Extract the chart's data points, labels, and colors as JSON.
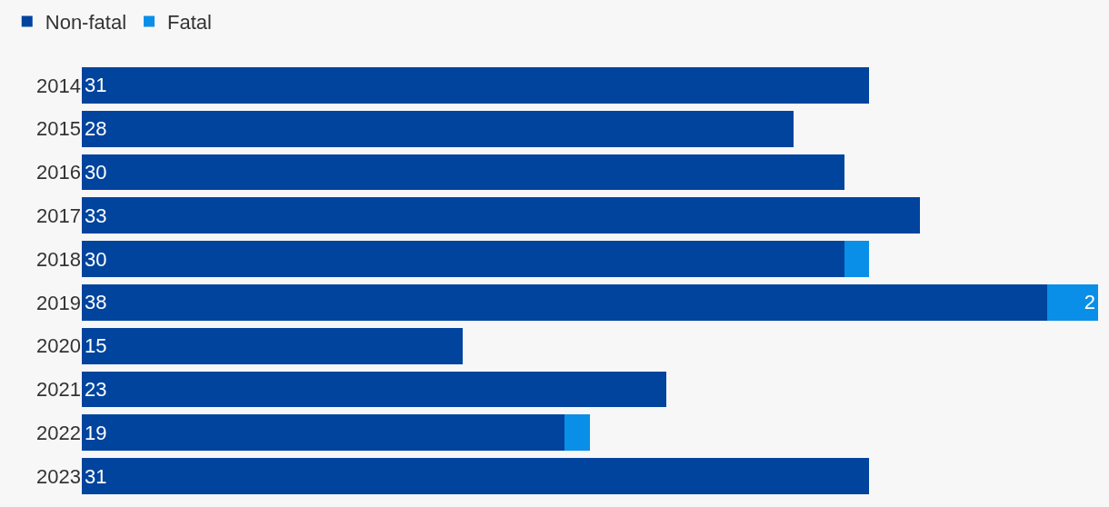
{
  "chart_data": {
    "type": "bar",
    "orientation": "horizontal",
    "stacked": true,
    "categories": [
      "2014",
      "2015",
      "2016",
      "2017",
      "2018",
      "2019",
      "2020",
      "2021",
      "2022",
      "2023"
    ],
    "series": [
      {
        "name": "Non-fatal",
        "color": "#00449e",
        "values": [
          31,
          28,
          30,
          33,
          30,
          38,
          15,
          23,
          19,
          31
        ],
        "value_labels": [
          "31",
          "28",
          "30",
          "33",
          "30",
          "38",
          "15",
          "23",
          "19",
          "31"
        ]
      },
      {
        "name": "Fatal",
        "color": "#0a8fe8",
        "values": [
          null,
          null,
          null,
          null,
          1,
          2,
          null,
          null,
          1,
          null
        ],
        "value_labels": [
          null,
          null,
          null,
          null,
          null,
          "2",
          null,
          null,
          null,
          null
        ]
      }
    ],
    "xlim": [
      0,
      40
    ],
    "tick_labels": "y",
    "legend": "top left"
  }
}
